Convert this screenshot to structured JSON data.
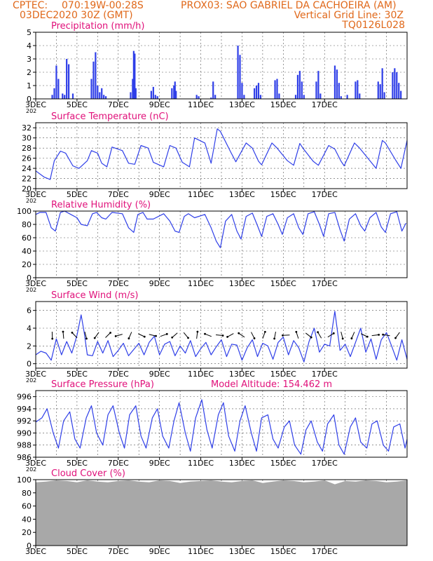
{
  "header": {
    "line1_left": "CPTEC:",
    "line1_coords": "070:19W-00:28S",
    "line1_station": "PROX03: SAO GABRIEL DA CACHOEIRA (AM)",
    "line2_left": "03DEC2020 30Z (GMT)",
    "line2_right": "Vertical Grid Line: 30Z",
    "line3_right": "TQ0126L028"
  },
  "colors": {
    "header": "#e0681a",
    "title": "#e0107a",
    "line": "#2f3fe8",
    "cloud": "#a8a8a8",
    "grid": "#555555"
  },
  "x_axis": {
    "ticks": [
      "3DEC",
      "5DEC",
      "7DEC",
      "9DEC",
      "11DEC",
      "13DEC",
      "15DEC",
      "17DEC"
    ],
    "year_fragment": "202"
  },
  "chart_data": [
    {
      "type": "bar",
      "title": "Precipitation (mm/h)",
      "ylim": [
        0,
        5
      ],
      "yticks": [
        0,
        1,
        2,
        3,
        4,
        5
      ],
      "x": [
        0.8,
        0.9,
        1.0,
        1.1,
        1.3,
        1.4,
        1.5,
        1.6,
        1.8,
        2.7,
        2.8,
        2.9,
        3.0,
        3.1,
        3.2,
        3.3,
        3.4,
        4.6,
        4.7,
        4.75,
        4.8,
        4.85,
        5.6,
        5.7,
        5.8,
        5.9,
        6.6,
        6.7,
        6.75,
        6.8,
        7.8,
        7.9,
        8.5,
        8.6,
        8.7,
        9.8,
        9.9,
        10.0,
        10.1,
        10.6,
        10.7,
        10.8,
        10.9,
        11.6,
        11.7,
        11.8,
        12.6,
        12.7,
        12.8,
        12.9,
        13.0,
        13.6,
        13.7,
        13.8,
        14.5,
        14.6,
        14.7,
        14.8,
        15.1,
        15.5,
        15.6,
        15.7,
        16.6,
        16.7,
        16.8,
        16.9,
        17.3,
        17.4,
        17.5,
        17.6,
        17.7
      ],
      "values": [
        0.3,
        0.8,
        2.5,
        1.5,
        0.4,
        0.3,
        3.0,
        2.6,
        0.4,
        1.5,
        2.8,
        3.5,
        1.0,
        0.5,
        0.8,
        0.3,
        0.2,
        0.5,
        1.5,
        3.6,
        3.4,
        0.8,
        0.6,
        0.9,
        0.3,
        0.2,
        0.8,
        1.0,
        1.3,
        0.6,
        0.3,
        0.2,
        0.1,
        1.3,
        0.3,
        4.0,
        3.3,
        1.2,
        0.3,
        0.8,
        1.0,
        1.2,
        0.3,
        1.4,
        1.5,
        0.4,
        0.3,
        1.8,
        2.1,
        1.3,
        0.3,
        1.3,
        2.1,
        0.4,
        2.5,
        2.2,
        1.2,
        0.2,
        0.3,
        1.3,
        1.4,
        0.4,
        1.3,
        1.1,
        2.3,
        0.5,
        2.0,
        2.3,
        2.0,
        1.2,
        0.6
      ]
    },
    {
      "type": "line",
      "title": "Surface Temperature (nC)",
      "ylim": [
        20,
        33
      ],
      "yticks": [
        20,
        22,
        24,
        26,
        28,
        30,
        32
      ],
      "x": [
        0.0,
        0.4,
        0.7,
        0.9,
        1.2,
        1.45,
        1.8,
        2.1,
        2.5,
        2.7,
        3.0,
        3.2,
        3.45,
        3.7,
        4.2,
        4.5,
        4.8,
        5.1,
        5.45,
        5.7,
        6.2,
        6.5,
        6.8,
        7.1,
        7.45,
        7.7,
        8.2,
        8.5,
        8.8,
        8.95,
        9.45,
        9.7,
        10.2,
        10.5,
        10.8,
        10.95,
        11.45,
        11.7,
        12.2,
        12.5,
        12.8,
        12.95,
        13.45,
        13.7,
        14.2,
        14.5,
        14.8,
        14.95,
        15.45,
        15.7,
        16.2,
        16.5,
        16.8,
        16.95,
        17.45,
        17.7,
        18.0
      ],
      "values": [
        23.5,
        22.3,
        21.8,
        25.5,
        27.4,
        27.0,
        24.5,
        24.0,
        25.5,
        27.5,
        27.0,
        25.0,
        24.3,
        28.2,
        27.5,
        25.0,
        24.8,
        28.5,
        28.0,
        25.2,
        24.3,
        28.5,
        28.0,
        25.2,
        24.3,
        30.0,
        29.0,
        25.0,
        31.8,
        31.3,
        27.2,
        25.3,
        29.0,
        28.0,
        25.4,
        24.7,
        29.0,
        28.0,
        25.5,
        24.6,
        28.9,
        28.0,
        25.4,
        24.6,
        28.5,
        27.8,
        25.4,
        24.5,
        29.0,
        28.0,
        25.5,
        24.0,
        29.5,
        29.0,
        25.6,
        24.0,
        29.5
      ]
    },
    {
      "type": "line",
      "title": "Relative Humidity (%)",
      "ylim": [
        0,
        100
      ],
      "yticks": [
        0,
        20,
        40,
        60,
        80,
        100
      ],
      "x": [
        0.0,
        0.2,
        0.5,
        0.75,
        0.95,
        1.2,
        1.4,
        1.7,
        2.0,
        2.2,
        2.5,
        2.75,
        2.95,
        3.2,
        3.4,
        3.7,
        4.2,
        4.5,
        4.75,
        4.95,
        5.2,
        5.4,
        5.7,
        6.2,
        6.5,
        6.75,
        6.95,
        7.2,
        7.4,
        7.7,
        8.2,
        8.5,
        8.75,
        8.95,
        9.2,
        9.5,
        9.75,
        9.95,
        10.2,
        10.5,
        10.75,
        10.95,
        11.2,
        11.5,
        11.75,
        11.95,
        12.2,
        12.5,
        12.75,
        12.95,
        13.2,
        13.5,
        13.75,
        13.95,
        14.2,
        14.5,
        14.75,
        14.95,
        15.2,
        15.5,
        15.75,
        15.95,
        16.2,
        16.5,
        16.75,
        16.95,
        17.2,
        17.5,
        17.75,
        17.95
      ],
      "values": [
        95,
        98,
        98,
        75,
        70,
        98,
        100,
        95,
        90,
        80,
        78,
        96,
        98,
        90,
        88,
        98,
        96,
        75,
        68,
        95,
        98,
        88,
        88,
        96,
        85,
        70,
        68,
        92,
        96,
        90,
        95,
        75,
        55,
        45,
        85,
        95,
        70,
        58,
        92,
        97,
        78,
        62,
        92,
        96,
        80,
        65,
        90,
        96,
        75,
        65,
        96,
        99,
        80,
        62,
        96,
        98,
        72,
        55,
        88,
        96,
        78,
        70,
        90,
        98,
        76,
        68,
        96,
        99,
        70,
        82
      ]
    },
    {
      "type": "line",
      "title": "Surface Wind (m/s)",
      "ylim": [
        -0.5,
        7
      ],
      "yticks": [
        0,
        2,
        4,
        6
      ],
      "x": [
        0.0,
        0.25,
        0.5,
        0.75,
        1.0,
        1.25,
        1.5,
        1.75,
        2.0,
        2.2,
        2.35,
        2.5,
        2.75,
        3.0,
        3.25,
        3.5,
        3.75,
        4.0,
        4.25,
        4.5,
        4.75,
        5.0,
        5.25,
        5.5,
        5.75,
        6.0,
        6.25,
        6.5,
        6.75,
        7.0,
        7.25,
        7.5,
        7.75,
        8.0,
        8.25,
        8.5,
        8.75,
        9.0,
        9.25,
        9.5,
        9.75,
        10.0,
        10.25,
        10.5,
        10.75,
        11.0,
        11.25,
        11.5,
        11.75,
        12.0,
        12.25,
        12.5,
        12.75,
        13.0,
        13.25,
        13.5,
        13.75,
        14.0,
        14.25,
        14.5,
        14.75,
        15.0,
        15.25,
        15.5,
        15.75,
        16.0,
        16.25,
        16.5,
        16.75,
        17.0,
        17.25,
        17.5,
        17.75,
        18.0
      ],
      "values": [
        1.0,
        1.4,
        1.2,
        0.4,
        2.8,
        1.0,
        2.5,
        1.2,
        3.2,
        5.5,
        3.5,
        1.0,
        0.9,
        2.5,
        1.2,
        2.6,
        0.8,
        1.5,
        2.3,
        0.9,
        1.6,
        2.3,
        1.0,
        2.4,
        3.1,
        1.0,
        2.2,
        2.5,
        0.9,
        2.0,
        1.2,
        2.6,
        0.8,
        1.7,
        2.4,
        1.0,
        1.9,
        2.7,
        0.8,
        2.2,
        2.1,
        0.4,
        1.8,
        2.7,
        0.8,
        2.3,
        2.0,
        0.5,
        2.4,
        3.0,
        1.0,
        2.6,
        1.8,
        0.2,
        2.5,
        4.0,
        1.3,
        2.2,
        2.0,
        5.9,
        1.5,
        2.2,
        0.8,
        2.4,
        4.0,
        1.3,
        2.8,
        0.5,
        2.7,
        3.5,
        2.0,
        0.4,
        2.7,
        0.5
      ]
    },
    {
      "type": "line",
      "title": "Surface Pressure (hPa)",
      "subtitle": "Model Altitude: 154.462 m",
      "ylim": [
        986,
        997
      ],
      "yticks": [
        986,
        988,
        990,
        992,
        994,
        996
      ],
      "x": [
        0.0,
        0.3,
        0.55,
        0.85,
        1.1,
        1.35,
        1.65,
        1.9,
        2.15,
        2.45,
        2.7,
        2.95,
        3.25,
        3.5,
        3.75,
        4.05,
        4.3,
        4.55,
        4.85,
        5.1,
        5.35,
        5.65,
        5.9,
        6.15,
        6.45,
        6.7,
        6.95,
        7.25,
        7.5,
        7.75,
        8.05,
        8.3,
        8.55,
        8.85,
        9.1,
        9.35,
        9.65,
        9.9,
        10.15,
        10.45,
        10.7,
        10.95,
        11.25,
        11.5,
        11.75,
        12.05,
        12.3,
        12.55,
        12.85,
        13.1,
        13.35,
        13.65,
        13.9,
        14.15,
        14.45,
        14.7,
        14.95,
        15.25,
        15.5,
        15.75,
        16.05,
        16.3,
        16.55,
        16.85,
        17.1,
        17.35,
        17.65,
        17.9,
        18.0
      ],
      "values": [
        991.8,
        992.5,
        994.0,
        990.0,
        987.5,
        992.0,
        993.5,
        989.0,
        987.5,
        992.5,
        994.5,
        990.0,
        988.0,
        993.0,
        994.5,
        990.0,
        987.5,
        993.0,
        994.5,
        989.5,
        987.5,
        992.5,
        994.0,
        989.5,
        987.5,
        992.0,
        995.0,
        990.0,
        987.0,
        992.5,
        995.5,
        990.5,
        987.5,
        993.0,
        995.0,
        989.5,
        987.0,
        992.0,
        994.5,
        990.0,
        987.0,
        992.5,
        993.0,
        989.0,
        987.5,
        991.0,
        992.0,
        988.0,
        986.5,
        990.5,
        992.0,
        988.5,
        987.0,
        991.5,
        993.0,
        988.0,
        986.5,
        991.0,
        992.5,
        988.5,
        987.5,
        991.5,
        992.0,
        988.0,
        987.0,
        991.0,
        991.5,
        987.5,
        989.0
      ]
    },
    {
      "type": "area",
      "title": "Cloud Cover (%)",
      "ylim": [
        0,
        100
      ],
      "yticks": [
        0,
        20,
        40,
        60,
        80,
        100
      ],
      "description_values": "near 100% throughout, small dips to ~92-95%",
      "x": [
        0.0,
        0.5,
        1.0,
        1.5,
        2.0,
        2.5,
        3.0,
        3.5,
        4.0,
        4.5,
        5.0,
        5.5,
        6.0,
        6.5,
        7.0,
        7.5,
        8.0,
        8.5,
        9.0,
        9.5,
        10.0,
        10.5,
        11.0,
        11.5,
        12.0,
        12.5,
        13.0,
        13.5,
        14.0,
        14.5,
        15.0,
        15.5,
        16.0,
        16.5,
        17.0,
        17.5,
        18.0
      ],
      "values": [
        96,
        97,
        99,
        98,
        96,
        99,
        97,
        96,
        98,
        99,
        97,
        96,
        99,
        98,
        95,
        97,
        98,
        99,
        97,
        96,
        98,
        99,
        95,
        97,
        99,
        98,
        96,
        97,
        99,
        93,
        98,
        97,
        99,
        98,
        96,
        97,
        99
      ]
    }
  ]
}
